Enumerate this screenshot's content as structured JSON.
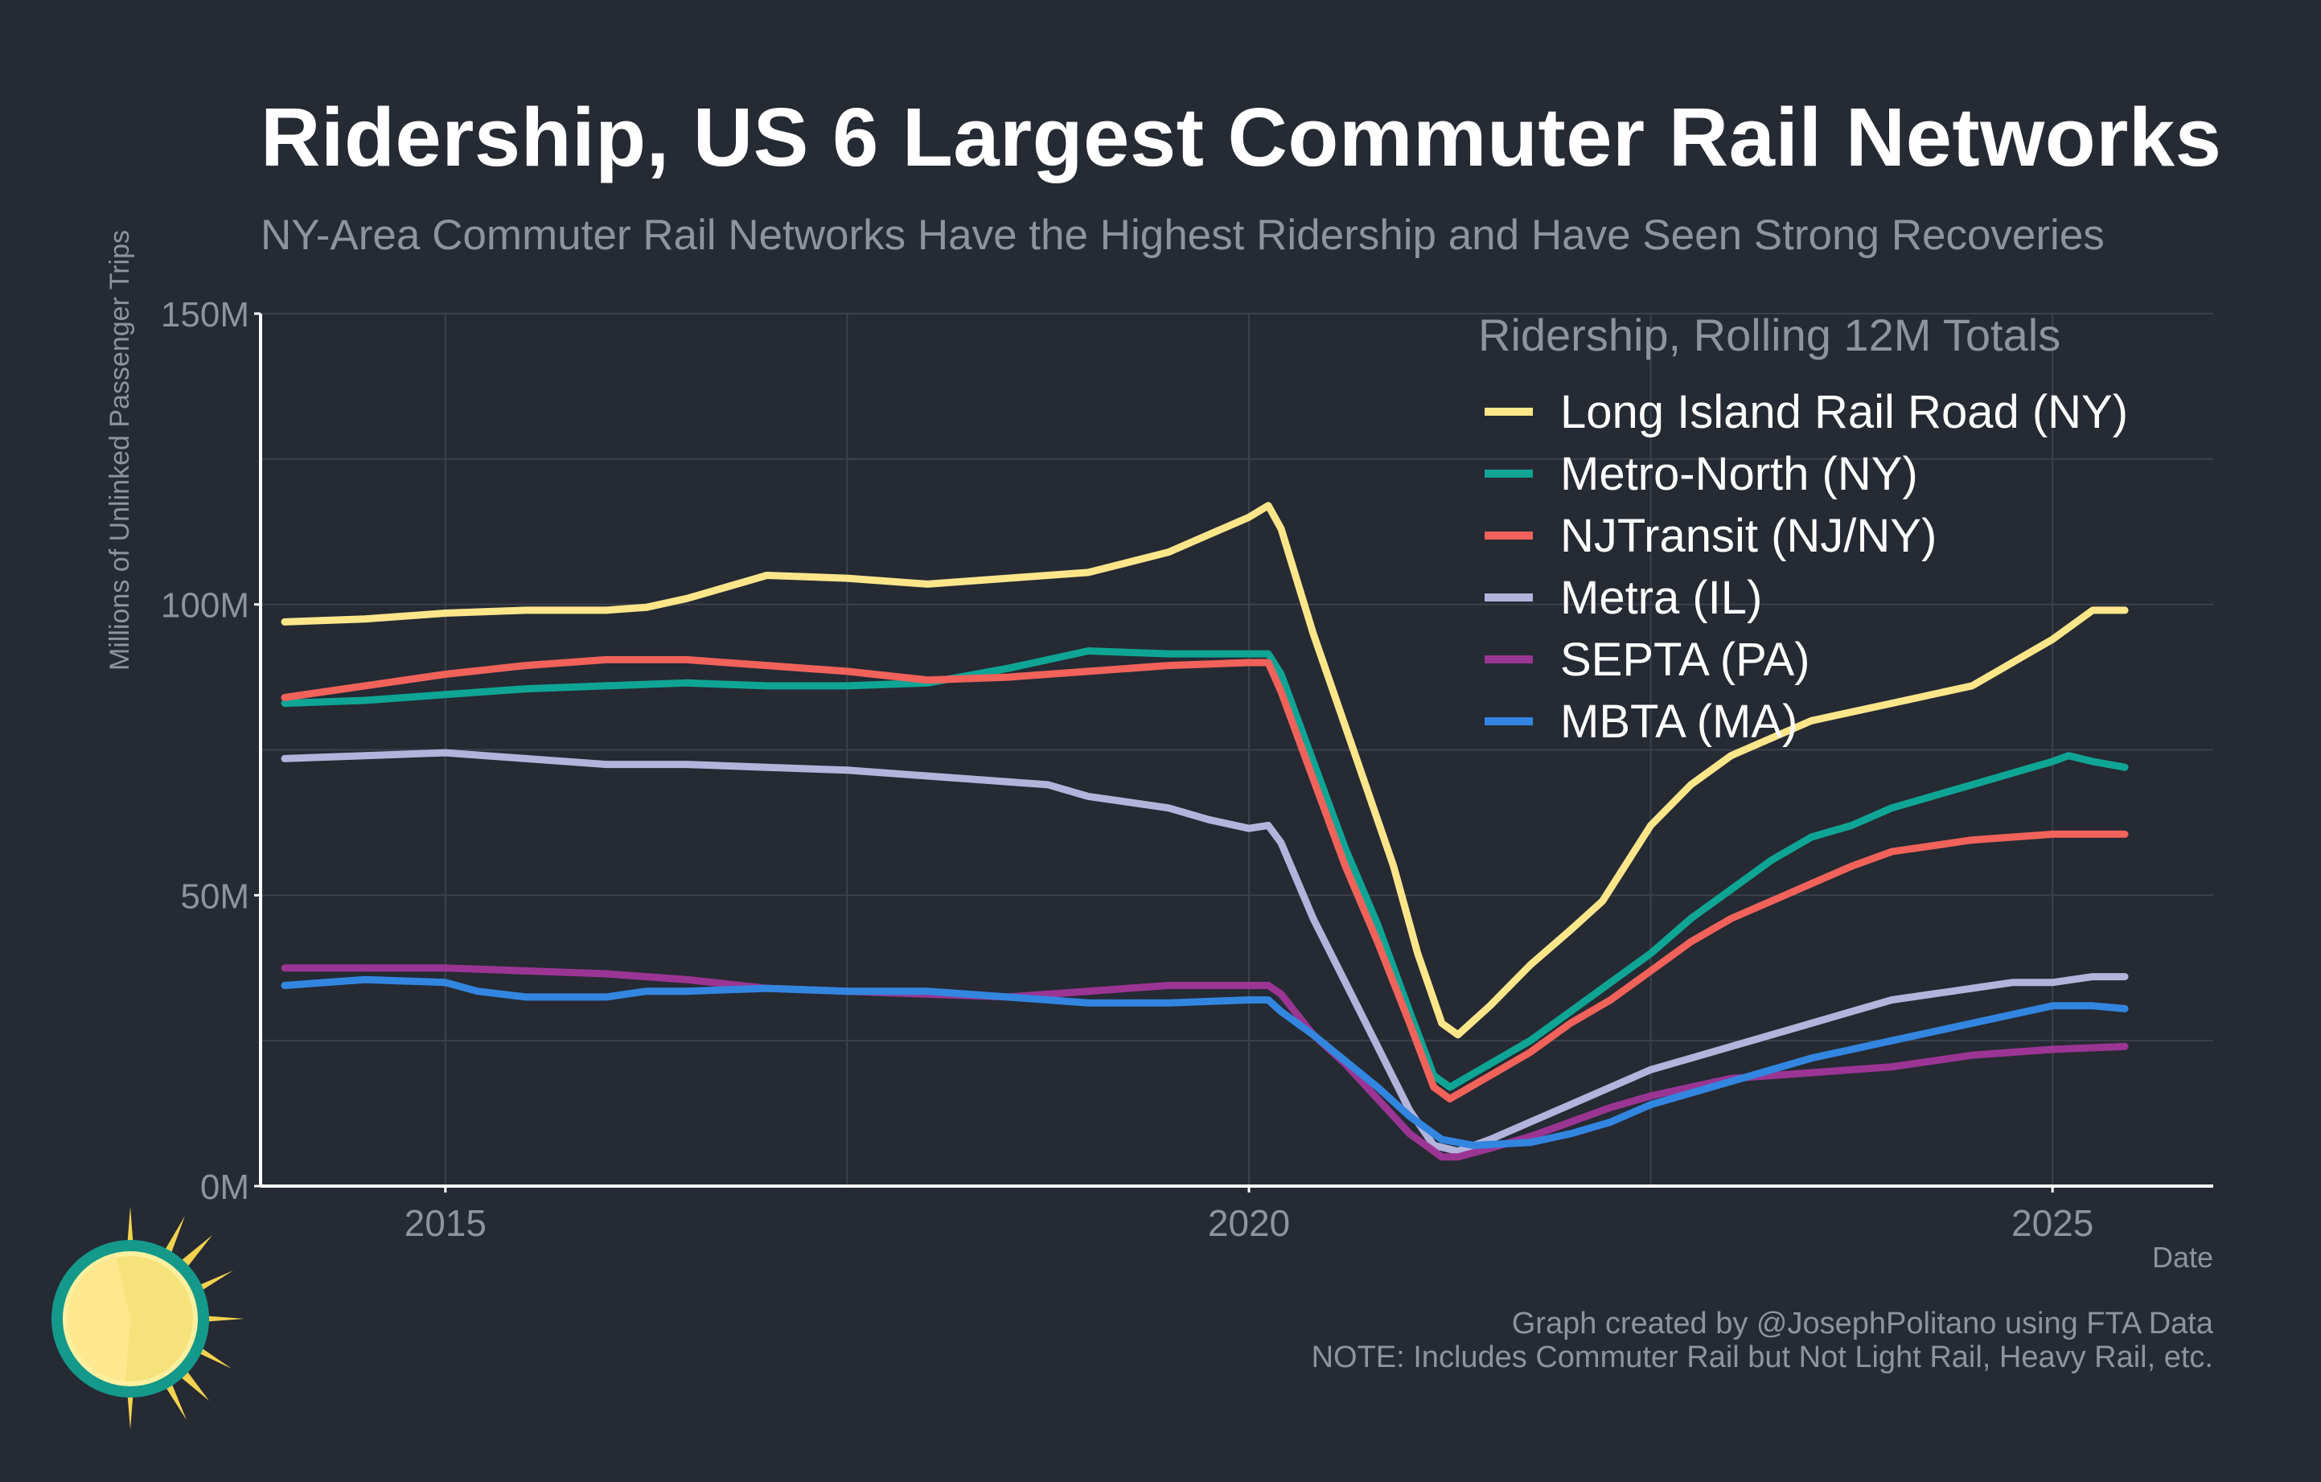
{
  "chart_data": {
    "type": "line",
    "title": "Ridership, US 6 Largest Commuter Rail Networks",
    "subtitle": "NY-Area Commuter Rail Networks Have the Highest Ridership and Have Seen Strong Recoveries",
    "ylabel": "Millions of Unlinked Passenger Trips",
    "xlabel": "Date",
    "xlim": [
      2013.85,
      2026.0
    ],
    "ylim": [
      0,
      150
    ],
    "x_ticks": [
      2015,
      2020,
      2025
    ],
    "x_tick_labels": [
      "2015",
      "2020",
      "2025"
    ],
    "y_ticks": [
      0,
      50,
      100,
      150
    ],
    "y_tick_labels": [
      "0M",
      "50M",
      "100M",
      "150M"
    ],
    "grid": true,
    "legend": {
      "title": "Ridership, Rolling 12M Totals",
      "position": "top-right"
    },
    "series": [
      {
        "name": "Long Island Rail Road (NY)",
        "color": "#fde68a",
        "points": [
          [
            2014.0,
            97
          ],
          [
            2014.5,
            97.5
          ],
          [
            2015.0,
            98.5
          ],
          [
            2015.5,
            99
          ],
          [
            2016.0,
            99
          ],
          [
            2016.25,
            99.5
          ],
          [
            2016.5,
            101
          ],
          [
            2016.75,
            103
          ],
          [
            2017.0,
            105
          ],
          [
            2017.5,
            104.5
          ],
          [
            2018.0,
            103.5
          ],
          [
            2018.5,
            104.5
          ],
          [
            2019.0,
            105.5
          ],
          [
            2019.5,
            109
          ],
          [
            2019.75,
            112
          ],
          [
            2020.0,
            115
          ],
          [
            2020.12,
            117
          ],
          [
            2020.2,
            113
          ],
          [
            2020.4,
            95
          ],
          [
            2020.65,
            75
          ],
          [
            2020.9,
            55
          ],
          [
            2021.05,
            40
          ],
          [
            2021.2,
            28
          ],
          [
            2021.3,
            26
          ],
          [
            2021.5,
            31
          ],
          [
            2021.75,
            38
          ],
          [
            2022.0,
            44
          ],
          [
            2022.2,
            49
          ],
          [
            2022.5,
            62
          ],
          [
            2022.75,
            69
          ],
          [
            2023.0,
            74
          ],
          [
            2023.5,
            80
          ],
          [
            2024.0,
            83
          ],
          [
            2024.5,
            86
          ],
          [
            2024.75,
            90
          ],
          [
            2025.0,
            94
          ],
          [
            2025.25,
            99
          ],
          [
            2025.45,
            99
          ]
        ]
      },
      {
        "name": "Metro-North (NY)",
        "color": "#0fa595",
        "points": [
          [
            2014.0,
            83
          ],
          [
            2014.5,
            83.5
          ],
          [
            2015.0,
            84.5
          ],
          [
            2015.5,
            85.5
          ],
          [
            2016.0,
            86
          ],
          [
            2016.5,
            86.5
          ],
          [
            2017.0,
            86
          ],
          [
            2017.5,
            86
          ],
          [
            2018.0,
            86.5
          ],
          [
            2018.5,
            89
          ],
          [
            2019.0,
            92
          ],
          [
            2019.5,
            91.5
          ],
          [
            2020.0,
            91.5
          ],
          [
            2020.12,
            91.5
          ],
          [
            2020.2,
            88
          ],
          [
            2020.4,
            73
          ],
          [
            2020.6,
            58
          ],
          [
            2020.8,
            45
          ],
          [
            2021.0,
            30
          ],
          [
            2021.15,
            19
          ],
          [
            2021.25,
            17
          ],
          [
            2021.5,
            21
          ],
          [
            2021.75,
            25
          ],
          [
            2022.0,
            30
          ],
          [
            2022.25,
            35
          ],
          [
            2022.5,
            40
          ],
          [
            2022.75,
            46
          ],
          [
            2023.0,
            51
          ],
          [
            2023.25,
            56
          ],
          [
            2023.5,
            60
          ],
          [
            2023.75,
            62
          ],
          [
            2024.0,
            65
          ],
          [
            2024.5,
            69
          ],
          [
            2024.75,
            71
          ],
          [
            2025.0,
            73
          ],
          [
            2025.1,
            74
          ],
          [
            2025.25,
            73
          ],
          [
            2025.45,
            72
          ]
        ]
      },
      {
        "name": "NJTransit (NJ/NY)",
        "color": "#f0625a",
        "points": [
          [
            2014.0,
            84
          ],
          [
            2014.5,
            86
          ],
          [
            2015.0,
            88
          ],
          [
            2015.5,
            89.5
          ],
          [
            2016.0,
            90.5
          ],
          [
            2016.5,
            90.5
          ],
          [
            2017.0,
            89.5
          ],
          [
            2017.5,
            88.5
          ],
          [
            2018.0,
            87
          ],
          [
            2018.5,
            87.5
          ],
          [
            2019.0,
            88.5
          ],
          [
            2019.5,
            89.5
          ],
          [
            2020.0,
            90
          ],
          [
            2020.12,
            90
          ],
          [
            2020.2,
            85
          ],
          [
            2020.4,
            70
          ],
          [
            2020.6,
            55
          ],
          [
            2020.8,
            42
          ],
          [
            2021.0,
            28
          ],
          [
            2021.15,
            17
          ],
          [
            2021.25,
            15
          ],
          [
            2021.5,
            19
          ],
          [
            2021.75,
            23
          ],
          [
            2022.0,
            28
          ],
          [
            2022.25,
            32
          ],
          [
            2022.5,
            37
          ],
          [
            2022.75,
            42
          ],
          [
            2023.0,
            46
          ],
          [
            2023.25,
            49
          ],
          [
            2023.5,
            52
          ],
          [
            2023.75,
            55
          ],
          [
            2024.0,
            57.5
          ],
          [
            2024.5,
            59.5
          ],
          [
            2024.75,
            60
          ],
          [
            2025.0,
            60.5
          ],
          [
            2025.25,
            60.5
          ],
          [
            2025.45,
            60.5
          ]
        ]
      },
      {
        "name": "Metra (IL)",
        "color": "#b2b4dc",
        "points": [
          [
            2014.0,
            73.5
          ],
          [
            2014.5,
            74
          ],
          [
            2015.0,
            74.5
          ],
          [
            2015.5,
            73.5
          ],
          [
            2016.0,
            72.5
          ],
          [
            2016.5,
            72.5
          ],
          [
            2017.0,
            72
          ],
          [
            2017.5,
            71.5
          ],
          [
            2018.0,
            70.5
          ],
          [
            2018.5,
            69.5
          ],
          [
            2018.75,
            69
          ],
          [
            2019.0,
            67
          ],
          [
            2019.5,
            65
          ],
          [
            2019.75,
            63
          ],
          [
            2020.0,
            61.5
          ],
          [
            2020.12,
            62
          ],
          [
            2020.2,
            59
          ],
          [
            2020.4,
            46
          ],
          [
            2020.6,
            35
          ],
          [
            2020.8,
            24
          ],
          [
            2021.0,
            13
          ],
          [
            2021.15,
            7
          ],
          [
            2021.3,
            6
          ],
          [
            2021.5,
            8
          ],
          [
            2021.75,
            11
          ],
          [
            2022.0,
            14
          ],
          [
            2022.25,
            17
          ],
          [
            2022.5,
            20
          ],
          [
            2022.75,
            22
          ],
          [
            2023.0,
            24
          ],
          [
            2023.5,
            28
          ],
          [
            2024.0,
            32
          ],
          [
            2024.5,
            34
          ],
          [
            2024.75,
            35
          ],
          [
            2025.0,
            35
          ],
          [
            2025.25,
            36
          ],
          [
            2025.45,
            36
          ]
        ]
      },
      {
        "name": "SEPTA (PA)",
        "color": "#9b3593",
        "points": [
          [
            2014.0,
            37.5
          ],
          [
            2014.5,
            37.5
          ],
          [
            2015.0,
            37.5
          ],
          [
            2015.5,
            37
          ],
          [
            2016.0,
            36.5
          ],
          [
            2016.5,
            35.5
          ],
          [
            2017.0,
            34
          ],
          [
            2017.5,
            33.5
          ],
          [
            2018.0,
            33
          ],
          [
            2018.5,
            32.5
          ],
          [
            2019.0,
            33.5
          ],
          [
            2019.5,
            34.5
          ],
          [
            2020.0,
            34.5
          ],
          [
            2020.12,
            34.5
          ],
          [
            2020.2,
            33
          ],
          [
            2020.4,
            26
          ],
          [
            2020.6,
            21
          ],
          [
            2020.8,
            15
          ],
          [
            2021.0,
            9
          ],
          [
            2021.2,
            5
          ],
          [
            2021.3,
            5
          ],
          [
            2021.5,
            6.5
          ],
          [
            2021.75,
            8.5
          ],
          [
            2022.0,
            11
          ],
          [
            2022.25,
            13.5
          ],
          [
            2022.5,
            15.5
          ],
          [
            2022.75,
            17
          ],
          [
            2023.0,
            18.5
          ],
          [
            2023.5,
            19.5
          ],
          [
            2024.0,
            20.5
          ],
          [
            2024.5,
            22.5
          ],
          [
            2025.0,
            23.5
          ],
          [
            2025.45,
            24
          ]
        ]
      },
      {
        "name": "MBTA (MA)",
        "color": "#3286e0",
        "points": [
          [
            2014.0,
            34.5
          ],
          [
            2014.5,
            35.5
          ],
          [
            2015.0,
            35
          ],
          [
            2015.2,
            33.5
          ],
          [
            2015.5,
            32.5
          ],
          [
            2016.0,
            32.5
          ],
          [
            2016.25,
            33.5
          ],
          [
            2016.5,
            33.5
          ],
          [
            2017.0,
            34
          ],
          [
            2017.5,
            33.5
          ],
          [
            2018.0,
            33.5
          ],
          [
            2018.5,
            32.5
          ],
          [
            2018.75,
            32
          ],
          [
            2019.0,
            31.5
          ],
          [
            2019.5,
            31.5
          ],
          [
            2020.0,
            32
          ],
          [
            2020.12,
            32
          ],
          [
            2020.2,
            30
          ],
          [
            2020.4,
            26
          ],
          [
            2020.6,
            21.5
          ],
          [
            2020.8,
            17
          ],
          [
            2021.0,
            12
          ],
          [
            2021.2,
            8
          ],
          [
            2021.4,
            7
          ],
          [
            2021.75,
            7.5
          ],
          [
            2022.0,
            9
          ],
          [
            2022.25,
            11
          ],
          [
            2022.5,
            14
          ],
          [
            2022.75,
            16
          ],
          [
            2023.0,
            18
          ],
          [
            2023.5,
            22
          ],
          [
            2024.0,
            25
          ],
          [
            2024.5,
            28
          ],
          [
            2024.75,
            29.5
          ],
          [
            2025.0,
            31
          ],
          [
            2025.25,
            31
          ],
          [
            2025.45,
            30.5
          ]
        ]
      }
    ],
    "footer_credit": "Graph created by @JosephPolitano using FTA Data",
    "footer_note": "NOTE: Includes Commuter Rail but Not Light Rail, Heavy Rail, etc."
  }
}
